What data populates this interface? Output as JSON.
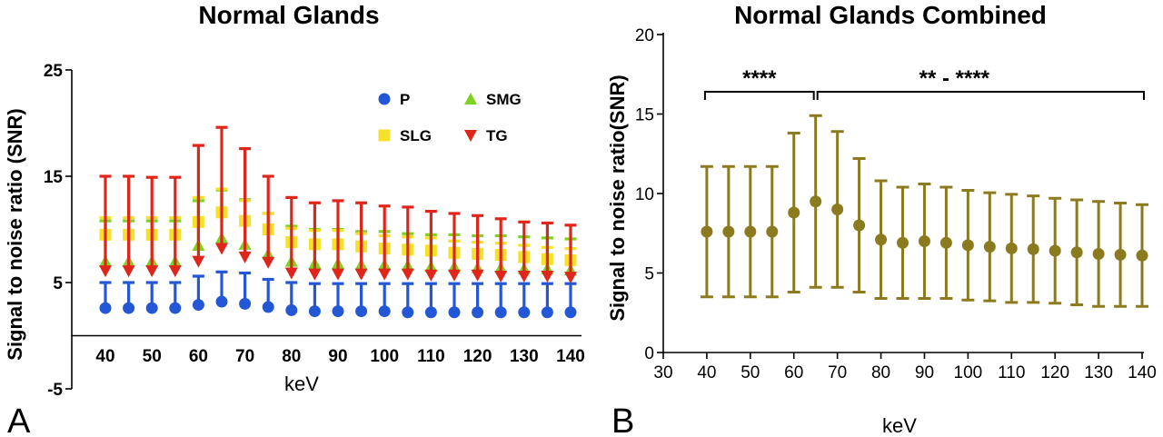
{
  "panels": {
    "a_label": "A",
    "b_label": "B"
  },
  "chart_data": [
    {
      "type": "scatter",
      "title": "Normal Glands",
      "xlabel": "keV",
      "ylabel": "Signal to noise ratio (SNR)",
      "x": [
        40,
        45,
        50,
        55,
        60,
        65,
        70,
        75,
        80,
        85,
        90,
        95,
        100,
        105,
        110,
        115,
        120,
        125,
        130,
        135,
        140
      ],
      "x_tick_labels": [
        "40",
        "50",
        "60",
        "70",
        "80",
        "90",
        "100",
        "110",
        "120",
        "130",
        "140"
      ],
      "y_tick_labels": [
        "25",
        "15",
        "5",
        "-5"
      ],
      "ylim": [
        -5,
        25
      ],
      "error_bars": "upper",
      "legend_position": "top-right",
      "series": [
        {
          "name": "P",
          "color": "#2457d6",
          "marker": "circle",
          "values": [
            2.6,
            2.6,
            2.6,
            2.6,
            2.9,
            3.2,
            3.0,
            2.7,
            2.4,
            2.3,
            2.3,
            2.3,
            2.3,
            2.2,
            2.2,
            2.2,
            2.2,
            2.2,
            2.2,
            2.2,
            2.2
          ],
          "errors": [
            2.4,
            2.4,
            2.4,
            2.4,
            2.7,
            2.8,
            2.9,
            2.6,
            2.6,
            2.6,
            2.6,
            2.6,
            2.6,
            2.7,
            2.7,
            2.7,
            2.7,
            2.7,
            2.7,
            2.7,
            2.7
          ]
        },
        {
          "name": "SMG",
          "color": "#7ed321",
          "marker": "triangle",
          "values": [
            7.0,
            7.0,
            7.0,
            7.0,
            8.5,
            9.2,
            8.6,
            7.7,
            7.0,
            6.8,
            6.8,
            6.7,
            6.7,
            6.6,
            6.5,
            6.5,
            6.4,
            6.4,
            6.3,
            6.3,
            6.2
          ],
          "errors": [
            3.8,
            3.8,
            3.8,
            3.8,
            4.2,
            4.5,
            4.2,
            3.8,
            3.3,
            3.2,
            3.2,
            3.1,
            3.1,
            3.0,
            3.0,
            3.0,
            3.0,
            3.0,
            3.0,
            2.9,
            2.9
          ]
        },
        {
          "name": "SLG",
          "color": "#f5e12a",
          "marker": "square",
          "values": [
            9.5,
            9.5,
            9.5,
            9.5,
            10.7,
            11.6,
            10.8,
            10.0,
            8.8,
            8.6,
            8.6,
            8.4,
            8.2,
            8.1,
            8.0,
            7.8,
            7.7,
            7.6,
            7.4,
            7.2,
            7.1
          ],
          "errors": [
            1.6,
            1.6,
            1.6,
            1.6,
            2.3,
            2.2,
            1.9,
            1.5,
            1.3,
            1.3,
            1.3,
            1.2,
            1.2,
            1.2,
            1.2,
            1.1,
            1.1,
            1.1,
            1.1,
            1.1,
            1.1
          ]
        },
        {
          "name": "TG",
          "color": "#e0251b",
          "marker": "triangle-down",
          "values": [
            6.1,
            6.1,
            6.1,
            6.1,
            7.0,
            8.2,
            7.4,
            6.9,
            5.9,
            5.8,
            5.8,
            5.8,
            5.8,
            5.8,
            5.7,
            5.7,
            5.7,
            5.6,
            5.6,
            5.6,
            5.5
          ],
          "errors": [
            8.9,
            8.9,
            8.8,
            8.8,
            10.9,
            11.4,
            10.2,
            8.1,
            7.1,
            6.7,
            6.9,
            6.7,
            6.4,
            6.3,
            6.0,
            5.8,
            5.6,
            5.4,
            5.1,
            5.0,
            4.9
          ]
        }
      ]
    },
    {
      "type": "scatter",
      "title": "Normal Glands Combined",
      "xlabel": "keV",
      "ylabel": "Signal to noise ratio(SNR)",
      "x": [
        40,
        45,
        50,
        55,
        60,
        65,
        70,
        75,
        80,
        85,
        90,
        95,
        100,
        105,
        110,
        115,
        120,
        125,
        130,
        135,
        140
      ],
      "x_tick_labels": [
        "30",
        "40",
        "50",
        "60",
        "70",
        "80",
        "90",
        "100",
        "110",
        "120",
        "130",
        "140"
      ],
      "y_tick_labels": [
        "0",
        "5",
        "10",
        "15",
        "20"
      ],
      "xlim": [
        30,
        140
      ],
      "ylim": [
        0,
        20
      ],
      "error_bars": "symmetric",
      "series": [
        {
          "color": "#8c7a1e",
          "marker": "circle",
          "values": [
            7.6,
            7.6,
            7.6,
            7.6,
            8.8,
            9.5,
            9.0,
            8.0,
            7.1,
            6.9,
            7.0,
            6.9,
            6.75,
            6.65,
            6.55,
            6.5,
            6.4,
            6.3,
            6.2,
            6.15,
            6.1
          ],
          "errors": [
            4.1,
            4.1,
            4.1,
            4.1,
            5.0,
            5.4,
            4.9,
            4.2,
            3.7,
            3.5,
            3.6,
            3.5,
            3.45,
            3.4,
            3.4,
            3.35,
            3.3,
            3.3,
            3.3,
            3.25,
            3.2
          ]
        }
      ],
      "annotations": [
        {
          "text": "****",
          "x_from": 40,
          "x_to": 65
        },
        {
          "text": "**  -  ****",
          "x_from": 65,
          "x_to": 140
        }
      ]
    }
  ]
}
